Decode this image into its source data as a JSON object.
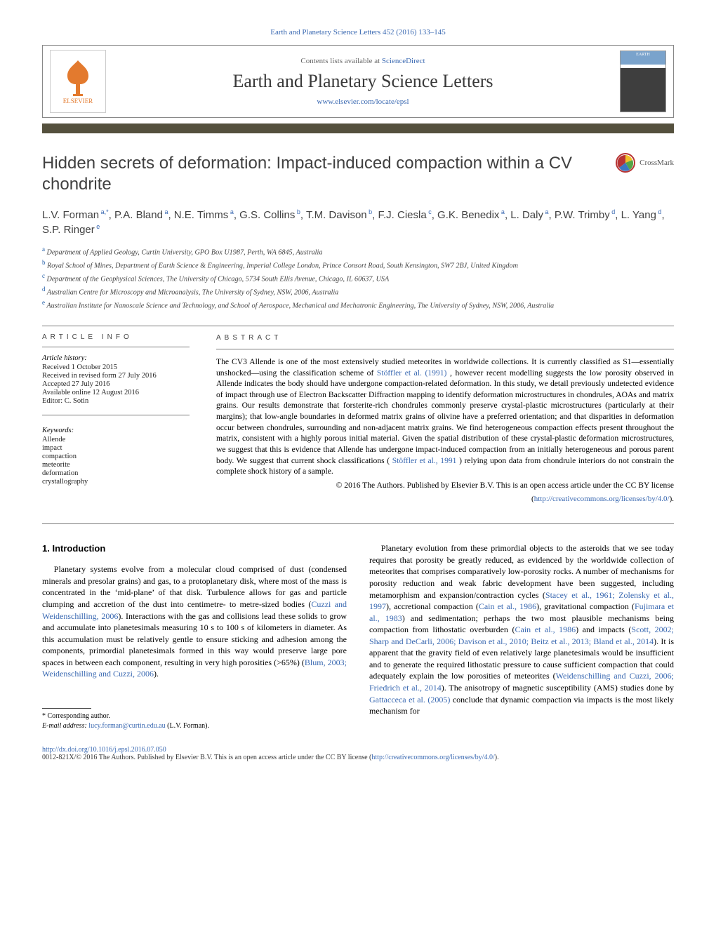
{
  "journal": {
    "top_link_text": "Earth and Planetary Science Letters 452 (2016) 133–145",
    "lists_prefix": "Contents lists available at ",
    "lists_link": "ScienceDirect",
    "title": "Earth and Planetary Science Letters",
    "homepage_url": "www.elsevier.com/locate/epsl",
    "publisher_name": "ELSEVIER",
    "cover_label": "EARTH"
  },
  "article": {
    "title": "Hidden secrets of deformation: Impact-induced compaction within a CV chondrite",
    "crossmark_label": "CrossMark",
    "authors_html": "L.V. Forman<sup> a,*</sup>, P.A. Bland<sup> a</sup>, N.E. Timms<sup> a</sup>, G.S. Collins<sup> b</sup>, T.M. Davison<sup> b</sup>, F.J. Ciesla<sup> c</sup>, G.K. Benedix<sup> a</sup>, L. Daly<sup> a</sup>, P.W. Trimby<sup> d</sup>, L. Yang<sup> d</sup>, S.P. Ringer<sup> e</sup>",
    "affiliations": [
      {
        "label": "a",
        "text": "Department of Applied Geology, Curtin University, GPO Box U1987, Perth, WA 6845, Australia"
      },
      {
        "label": "b",
        "text": "Royal School of Mines, Department of Earth Science & Engineering, Imperial College London, Prince Consort Road, South Kensington, SW7 2BJ, United Kingdom"
      },
      {
        "label": "c",
        "text": "Department of the Geophysical Sciences, The University of Chicago, 5734 South Ellis Avenue, Chicago, IL 60637, USA"
      },
      {
        "label": "d",
        "text": "Australian Centre for Microscopy and Microanalysis, The University of Sydney, NSW, 2006, Australia"
      },
      {
        "label": "e",
        "text": "Australian Institute for Nanoscale Science and Technology, and School of Aerospace, Mechanical and Mechatronic Engineering, The University of Sydney, NSW, 2006, Australia"
      }
    ]
  },
  "info": {
    "section_label": "ARTICLE INFO",
    "history_head": "Article history:",
    "history": [
      "Received 1 October 2015",
      "Received in revised form 27 July 2016",
      "Accepted 27 July 2016",
      "Available online 12 August 2016",
      "Editor: C. Sotin"
    ],
    "keywords_head": "Keywords:",
    "keywords": [
      "Allende",
      "impact",
      "compaction",
      "meteorite",
      "deformation",
      "crystallography"
    ]
  },
  "abstract": {
    "section_label": "ABSTRACT",
    "body_pre": "The CV3 Allende is one of the most extensively studied meteorites in worldwide collections. It is currently classified as S1—essentially unshocked—using the classification scheme of ",
    "cite1": "Stöffler et al. (1991)",
    "body_mid": ", however recent modelling suggests the low porosity observed in Allende indicates the body should have undergone compaction-related deformation. In this study, we detail previously undetected evidence of impact through use of Electron Backscatter Diffraction mapping to identify deformation microstructures in chondrules, AOAs and matrix grains. Our results demonstrate that forsterite-rich chondrules commonly preserve crystal-plastic microstructures (particularly at their margins); that low-angle boundaries in deformed matrix grains of olivine have a preferred orientation; and that disparities in deformation occur between chondrules, surrounding and non-adjacent matrix grains. We find heterogeneous compaction effects present throughout the matrix, consistent with a highly porous initial material. Given the spatial distribution of these crystal-plastic deformation microstructures, we suggest that this is evidence that Allende has undergone impact-induced compaction from an initially heterogeneous and porous parent body. We suggest that current shock classifications (",
    "cite2": "Stöffler et al., 1991",
    "body_post": ") relying upon data from chondrule interiors do not constrain the complete shock history of a sample.",
    "copyright_line": "© 2016 The Authors. Published by Elsevier B.V. This is an open access article under the CC BY license ",
    "license_open": "(",
    "license_url": "http://creativecommons.org/licenses/by/4.0/",
    "license_close": ")."
  },
  "body": {
    "heading": "1. Introduction",
    "p1_pre": "Planetary systems evolve from a molecular cloud comprised of dust (condensed minerals and presolar grains) and gas, to a protoplanetary disk, where most of the mass is concentrated in the ‘mid-plane’ of that disk. Turbulence allows for gas and particle clumping and accretion of the dust into centimetre- to metre-sized bodies (",
    "p1_cite1": "Cuzzi and Weidenschilling, 2006",
    "p1_mid": "). Interactions with the gas and collisions lead these solids to grow and accumulate into planetesimals measuring 10 s to 100 s of kilometers in diameter. As this accumulation must be relatively gentle to ensure sticking and adhesion among the components, primordial planetesimals formed in this way would preserve large pore spaces in between each component, resulting in very high porosities (>65%) (",
    "p1_cite2": "Blum, 2003; Weidenschilling and Cuzzi, 2006",
    "p1_post": ").",
    "p2_pre": "Planetary evolution from these primordial objects to the asteroids that we see today requires that porosity be greatly reduced, as evidenced by the worldwide collection of meteorites that comprises comparatively low-porosity rocks. A number of mechanisms for porosity reduction and weak fabric development have been suggested, including metamorphism and expansion/contraction cycles (",
    "p2_cite1": "Stacey et al., 1961; Zolensky et al., 1997",
    "p2_m1": "), accretional compaction (",
    "p2_cite2": "Cain et al., 1986",
    "p2_m2": "), gravitational compaction (",
    "p2_cite3": "Fujimara et al., 1983",
    "p2_m3": ") and sedimentation; perhaps the two most plausible mechanisms being compaction from lithostatic overburden (",
    "p2_cite4": "Cain et al., 1986",
    "p2_m4": ") and impacts (",
    "p2_cite5": "Scott, 2002; Sharp and DeCarli, 2006; Davison et al., 2010; Beitz et al., 2013; Bland et al., 2014",
    "p2_m5": "). It is apparent that the gravity field of even relatively large planetesimals would be insufficient and to generate the required lithostatic pressure to cause sufficient compaction that could adequately explain the low porosities of meteorites (",
    "p2_cite6": "Weidenschilling and Cuzzi, 2006; Friedrich et al., 2014",
    "p2_m6": "). The anisotropy of magnetic susceptibility (AMS) studies done by ",
    "p2_cite7": "Gattacceca et al. (2005)",
    "p2_post": " conclude that dynamic compaction via impacts is the most likely mechanism for"
  },
  "corr": {
    "star_label": "*",
    "corr_text": " Corresponding author.",
    "email_label": "E-mail address: ",
    "email": "lucy.forman@curtin.edu.au",
    "email_suffix": " (L.V. Forman)."
  },
  "footer": {
    "doi": "http://dx.doi.org/10.1016/j.epsl.2016.07.050",
    "issn_line": "0012-821X/© 2016 The Authors. Published by Elsevier B.V. This is an open access article under the CC BY license (",
    "license_url": "http://creativecommons.org/licenses/by/4.0/",
    "close": ")."
  },
  "colors": {
    "link": "#3968b1",
    "rule_bar": "#54503d",
    "text": "#000000",
    "heading_gray": "#404040"
  }
}
